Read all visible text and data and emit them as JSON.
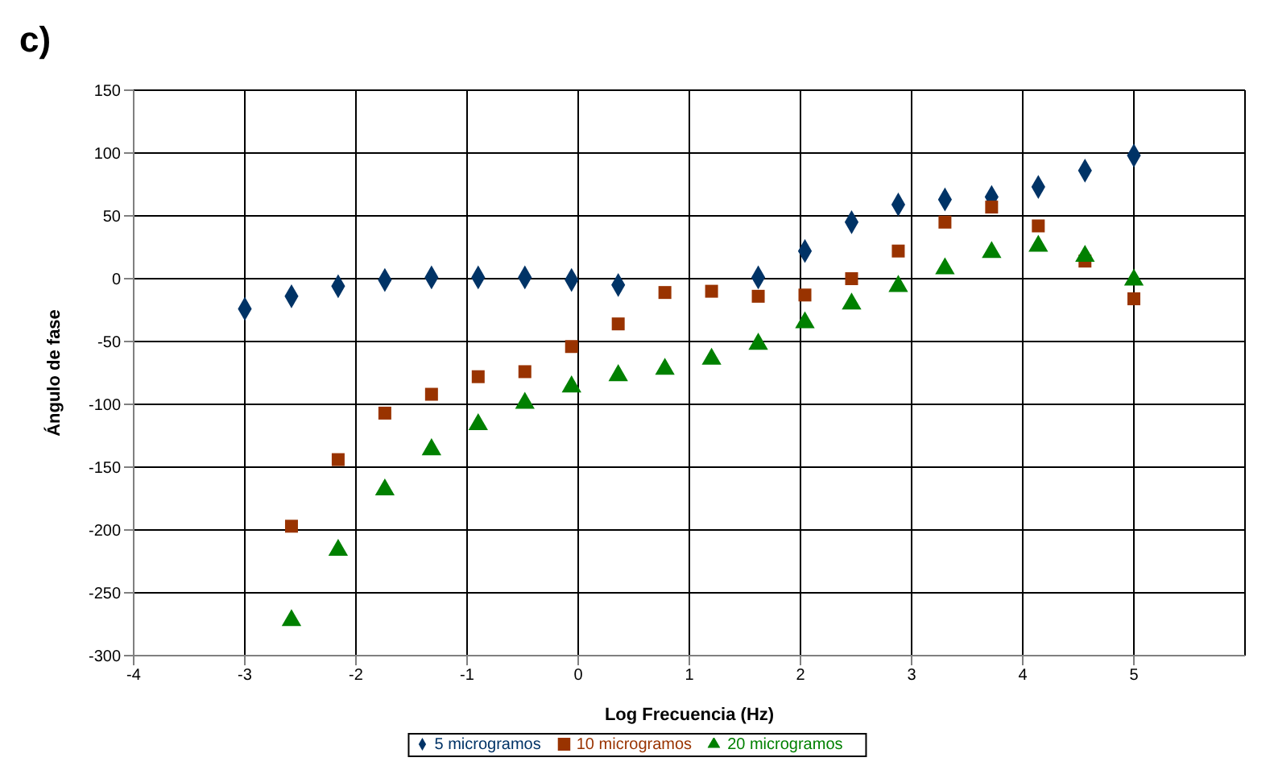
{
  "chart_data": {
    "type": "scatter",
    "title": "c)",
    "xlabel": "Log Frecuencia (Hz)",
    "ylabel": "Ángulo de fase",
    "x": [
      -3,
      -2.58,
      -2.16,
      -1.74,
      -1.32,
      -0.9,
      -0.48,
      -0.06,
      0.36,
      0.78,
      1.2,
      1.62,
      2.04,
      2.46,
      2.88,
      3.3,
      3.72,
      4.14,
      4.56,
      5
    ],
    "series": [
      {
        "name": "5 microgramos",
        "color": "#003366",
        "marker": "diamond",
        "values": [
          -24,
          -14,
          -6,
          -1,
          1,
          1,
          1,
          -1,
          -5,
          null,
          null,
          1,
          22,
          45,
          59,
          63,
          65,
          73,
          86,
          98
        ]
      },
      {
        "name": "10 microgramos",
        "color": "#993300",
        "marker": "square",
        "values": [
          null,
          -197,
          -144,
          -107,
          -92,
          -78,
          -74,
          -54,
          -36,
          -11,
          -10,
          -14,
          -13,
          0,
          22,
          45,
          57,
          42,
          14,
          -16
        ]
      },
      {
        "name": "20 microgramos",
        "color": "#008000",
        "marker": "triangle",
        "values": [
          null,
          -272,
          -216,
          -168,
          -136,
          -116,
          -99,
          -86,
          -77,
          -72,
          -64,
          -52,
          -35,
          -20,
          -6,
          8,
          21,
          26,
          18,
          -1
        ]
      }
    ],
    "xlim": [
      -4,
      6
    ],
    "xticks": [
      -4,
      -3,
      -2,
      -1,
      0,
      1,
      2,
      3,
      4,
      5
    ],
    "ylim": [
      -300,
      150
    ],
    "yticks": [
      -300,
      -250,
      -200,
      -150,
      -100,
      -50,
      0,
      50,
      100,
      150
    ],
    "grid": true,
    "legend": "bottom"
  }
}
